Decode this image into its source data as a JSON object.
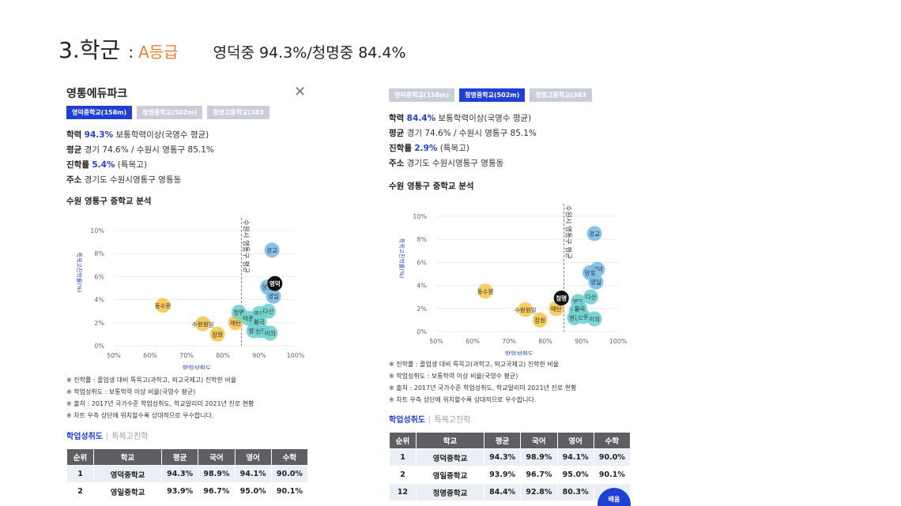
{
  "slide": {
    "number": "3.",
    "title": "학군",
    "separator": ":",
    "grade": "A등급",
    "rates": "영덕중 94.3%/청명중 84.4%"
  },
  "colors": {
    "accent": "#1f3fd6",
    "grade": "#ed7d31"
  },
  "left": {
    "brand": "영통에듀파크",
    "close_icon": "close-icon",
    "tabs": [
      {
        "label": "영덕중학교(158m)",
        "active": true
      },
      {
        "label": "청명중학교(502m)",
        "active": false
      },
      {
        "label": "청명고등학교(383",
        "active": false
      }
    ],
    "info": {
      "r1_label": "학력",
      "r1_value": "94.3%",
      "r1_rest": "보통학력이상(국영수 평균)",
      "r2_label": "평균",
      "r2_rest": "경기 74.6% / 수원시 영통구 85.1%",
      "r3_label": "진학률",
      "r3_value": "5.4%",
      "r3_rest": "(특목고)",
      "r4_label": "주소",
      "r4_rest": "경기도 수원시영통구 영통동"
    },
    "section_title": "수원 영통구 중학교 분석",
    "notes": [
      "※ 진학률 : 졸업생 대비 특목고(과학고, 외고국제고) 진학한 비율",
      "※ 학업성취도 : 보통학력 이상 비율(국영수 평균)",
      "※ 출처 : 2017년 국가수준 학업성취도, 학교알리미 2021년 진로 현황",
      "※ 차트 우측 상단에 위치할수록 상대적으로 우수합니다."
    ],
    "subtab_on": "학업성취도",
    "subtab_off": "특목고진학",
    "table": {
      "headers": [
        "순위",
        "학교",
        "평균",
        "국어",
        "영어",
        "수학"
      ],
      "rows": [
        [
          "1",
          "영덕중학교",
          "94.3%",
          "98.9%",
          "94.1%",
          "90.0%"
        ],
        [
          "2",
          "영일중학교",
          "93.9%",
          "96.7%",
          "95.0%",
          "90.1%"
        ]
      ]
    }
  },
  "right": {
    "tabs": [
      {
        "label": "영덕중학교(158m)",
        "active": false
      },
      {
        "label": "청명중학교(502m)",
        "active": true
      },
      {
        "label": "청명고등학교(383",
        "active": false
      }
    ],
    "info": {
      "r1_label": "학력",
      "r1_value": "84.4%",
      "r1_rest": "보통학력이상(국영수 평균)",
      "r2_label": "평균",
      "r2_rest": "경기 74.6% / 수원시 영통구 85.1%",
      "r3_label": "진학률",
      "r3_value": "2.9%",
      "r3_rest": "(특목고)",
      "r4_label": "주소",
      "r4_rest": "경기도 수원시영통구 영통동"
    },
    "section_title": "수원 영통구 중학교 분석",
    "notes": [
      "※ 진학률 : 졸업생 대비 특목고(과학고, 외고국제고) 진학한 비율",
      "※ 학업성취도 : 보통학력 이상 비율(국영수 평균)",
      "※ 출처 : 2017년 국가수준 학업성취도, 학교알리미 2021년 진로 현황",
      "※ 차트 우측 상단에 위치할수록 상대적으로 우수합니다."
    ],
    "subtab_on": "학업성취도",
    "subtab_off": "특목고진학",
    "table": {
      "headers": [
        "순위",
        "학교",
        "평균",
        "국어",
        "영어",
        "수학"
      ],
      "rows": [
        [
          "1",
          "영덕중학교",
          "94.3%",
          "98.9%",
          "94.1%",
          "90.0%"
        ],
        [
          "2",
          "영일중학교",
          "93.9%",
          "96.7%",
          "95.0%",
          "90.1%"
        ],
        [
          "12",
          "청명중학교",
          "84.4%",
          "92.8%",
          "80.3%",
          "8"
        ]
      ]
    },
    "float_button": "배움"
  },
  "chart_data": [
    {
      "type": "scatter",
      "xlabel": "학업성취도",
      "ylabel": "특목고진학률(%)",
      "xlim": [
        50,
        100
      ],
      "ylim": [
        0,
        10
      ],
      "xticks": [
        "50%",
        "60%",
        "70%",
        "80%",
        "90%",
        "100%"
      ],
      "yticks": [
        "0%",
        "2%",
        "4%",
        "6%",
        "8%",
        "10%"
      ],
      "reference_x": 85.1,
      "reference_label": "수원시 영통구 평균",
      "highlight": "영덕",
      "points": [
        {
          "label": "광교",
          "x": 93.5,
          "y": 8.3,
          "group": "blue"
        },
        {
          "label": "영덕",
          "x": 94.3,
          "y": 5.4,
          "group": "highlight"
        },
        {
          "label": "영일",
          "x": 93.9,
          "y": 4.3,
          "group": "blue"
        },
        {
          "label": "망포",
          "x": 92.3,
          "y": 5.1,
          "group": "blue"
        },
        {
          "label": "동수원",
          "x": 63.5,
          "y": 3.5,
          "group": "yellow"
        },
        {
          "label": "수원원일",
          "x": 74.5,
          "y": 1.9,
          "group": "yellow"
        },
        {
          "label": "잠원",
          "x": 78.5,
          "y": 1.0,
          "group": "yellow"
        },
        {
          "label": "매탄",
          "x": 83.5,
          "y": 2.0,
          "group": "yellow"
        },
        {
          "label": "청명",
          "x": 84.4,
          "y": 2.9,
          "group": "blue"
        },
        {
          "label": "영동",
          "x": 90.0,
          "y": 2.8,
          "group": "blue"
        },
        {
          "label": "태장",
          "x": 89.0,
          "y": 2.0,
          "group": "blue"
        },
        {
          "label": "영흥",
          "x": 88.5,
          "y": 1.3,
          "group": "blue"
        },
        {
          "label": "신동",
          "x": 90.5,
          "y": 1.3,
          "group": "blue"
        },
        {
          "label": "태흥",
          "x": 87.0,
          "y": 2.4,
          "group": "blue"
        },
        {
          "label": "황곡",
          "x": 90.0,
          "y": 2.1,
          "group": "blue"
        },
        {
          "label": "다산",
          "x": 92.5,
          "y": 3.0,
          "group": "blue"
        },
        {
          "label": "이의",
          "x": 93.0,
          "y": 1.1,
          "group": "blue"
        }
      ]
    },
    {
      "type": "scatter",
      "xlabel": "학업성취도",
      "ylabel": "특목고진학률(%)",
      "xlim": [
        50,
        100
      ],
      "ylim": [
        0,
        10
      ],
      "xticks": [
        "50%",
        "60%",
        "70%",
        "80%",
        "90%",
        "100%"
      ],
      "yticks": [
        "0%",
        "2%",
        "4%",
        "6%",
        "8%",
        "10%"
      ],
      "reference_x": 85.1,
      "reference_label": "수원시 영통구 평균",
      "highlight": "청명",
      "points": [
        {
          "label": "광교",
          "x": 93.5,
          "y": 8.5,
          "group": "blue"
        },
        {
          "label": "영덕",
          "x": 94.3,
          "y": 5.4,
          "group": "blue"
        },
        {
          "label": "영일",
          "x": 93.9,
          "y": 4.3,
          "group": "blue"
        },
        {
          "label": "망포",
          "x": 92.3,
          "y": 5.1,
          "group": "blue"
        },
        {
          "label": "동수원",
          "x": 63.5,
          "y": 3.5,
          "group": "yellow"
        },
        {
          "label": "수원원일",
          "x": 74.5,
          "y": 1.9,
          "group": "yellow"
        },
        {
          "label": "잠원",
          "x": 78.5,
          "y": 1.0,
          "group": "yellow"
        },
        {
          "label": "매탄",
          "x": 83.0,
          "y": 2.0,
          "group": "yellow"
        },
        {
          "label": "청명",
          "x": 84.4,
          "y": 2.9,
          "group": "highlight"
        },
        {
          "label": "영동",
          "x": 89.0,
          "y": 2.6,
          "group": "blue"
        },
        {
          "label": "태장",
          "x": 88.5,
          "y": 1.8,
          "group": "blue"
        },
        {
          "label": "영흥",
          "x": 88.0,
          "y": 1.2,
          "group": "blue"
        },
        {
          "label": "신동",
          "x": 90.5,
          "y": 1.3,
          "group": "blue"
        },
        {
          "label": "황곡",
          "x": 89.5,
          "y": 2.0,
          "group": "blue"
        },
        {
          "label": "다산",
          "x": 92.5,
          "y": 3.0,
          "group": "blue"
        },
        {
          "label": "이의",
          "x": 93.5,
          "y": 1.1,
          "group": "blue"
        }
      ]
    }
  ]
}
